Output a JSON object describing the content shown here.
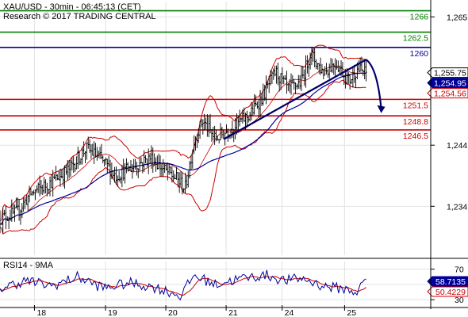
{
  "header": {
    "line1": "XAU/USD - 30min - 06:45:13 (CET)",
    "line2": "Research © 2017 TRADING CENTRAL"
  },
  "chart_data": {
    "type": "candlestick",
    "symbol": "XAU/USD",
    "interval": "30min",
    "grid": true,
    "price_axis": {
      "ylim": [
        1226,
        1267.5
      ],
      "ticks": [
        1265,
        1244,
        1234
      ]
    },
    "date_ticks": [
      {
        "label": "18",
        "t": 0.08
      },
      {
        "label": "19",
        "t": 0.245
      },
      {
        "label": "20",
        "t": 0.385
      },
      {
        "label": "21",
        "t": 0.525
      },
      {
        "label": "24",
        "t": 0.655
      },
      {
        "label": "25",
        "t": 0.8
      }
    ],
    "levels": [
      {
        "value": 1266,
        "label": "1266",
        "color": "#008000",
        "type": "resistance"
      },
      {
        "value": 1262.5,
        "label": "1262.5",
        "color": "#008000",
        "type": "resistance"
      },
      {
        "value": 1260,
        "label": "1260",
        "color": "#000099",
        "type": "pivot"
      },
      {
        "value": 1251.5,
        "label": "1251.5",
        "color": "#cc0000",
        "type": "support"
      },
      {
        "value": 1248.8,
        "label": "1248.8",
        "color": "#cc0000",
        "type": "support"
      },
      {
        "value": 1246.5,
        "label": "1246.5",
        "color": "#cc0000",
        "type": "support"
      }
    ],
    "price_tags": [
      {
        "value": 1255.75,
        "label": "1,255.75",
        "bg": "#ffffff",
        "fg": "#000000",
        "border": "#000000"
      },
      {
        "value": 1254.95,
        "label": "1,254.95",
        "bg": "#000099",
        "fg": "#ffffff",
        "border": "#000099"
      },
      {
        "value": 1254.56,
        "label": "1,254.56",
        "bg": "#ffffff",
        "fg": "#cc0000",
        "border": "#cc0000"
      }
    ],
    "key_points": [
      {
        "t": 0.0,
        "v": 1232
      },
      {
        "t": 0.04,
        "v": 1233
      },
      {
        "t": 0.07,
        "v": 1236
      },
      {
        "t": 0.12,
        "v": 1238
      },
      {
        "t": 0.16,
        "v": 1240
      },
      {
        "t": 0.2,
        "v": 1243.5
      },
      {
        "t": 0.23,
        "v": 1242
      },
      {
        "t": 0.27,
        "v": 1239
      },
      {
        "t": 0.31,
        "v": 1240.5
      },
      {
        "t": 0.35,
        "v": 1242
      },
      {
        "t": 0.38,
        "v": 1240
      },
      {
        "t": 0.41,
        "v": 1238.5
      },
      {
        "t": 0.43,
        "v": 1237
      },
      {
        "t": 0.45,
        "v": 1244.5
      },
      {
        "t": 0.47,
        "v": 1248
      },
      {
        "t": 0.5,
        "v": 1245
      },
      {
        "t": 0.54,
        "v": 1247
      },
      {
        "t": 0.58,
        "v": 1249
      },
      {
        "t": 0.61,
        "v": 1252
      },
      {
        "t": 0.64,
        "v": 1256
      },
      {
        "t": 0.67,
        "v": 1253
      },
      {
        "t": 0.7,
        "v": 1254.5
      },
      {
        "t": 0.72,
        "v": 1259
      },
      {
        "t": 0.75,
        "v": 1256
      },
      {
        "t": 0.78,
        "v": 1257.5
      },
      {
        "t": 0.81,
        "v": 1254.5
      },
      {
        "t": 0.83,
        "v": 1256.5
      },
      {
        "t": 0.85,
        "v": 1255.75
      }
    ],
    "trendline": {
      "from": {
        "t": 0.52,
        "v": 1245
      },
      "to": {
        "t": 0.85,
        "v": 1258
      },
      "color": "#000066"
    },
    "forecast_arrow": {
      "from": {
        "t": 0.85,
        "v": 1258
      },
      "to": {
        "t": 0.885,
        "v": 1249.5
      },
      "color": "#000066"
    },
    "rsi": {
      "title": "RSI14 - 9MA",
      "ylim": [
        25,
        80
      ],
      "ticks": [
        70,
        50,
        30
      ],
      "value_tag": "58.7135",
      "ma_tag": "50.4229",
      "value_color": "#000099",
      "ma_color": "#cc0000",
      "key_points": [
        {
          "t": 0.0,
          "v": 45
        },
        {
          "t": 0.06,
          "v": 55
        },
        {
          "t": 0.12,
          "v": 48
        },
        {
          "t": 0.18,
          "v": 60
        },
        {
          "t": 0.24,
          "v": 45
        },
        {
          "t": 0.3,
          "v": 52
        },
        {
          "t": 0.36,
          "v": 46
        },
        {
          "t": 0.42,
          "v": 35
        },
        {
          "t": 0.45,
          "v": 62
        },
        {
          "t": 0.5,
          "v": 50
        },
        {
          "t": 0.56,
          "v": 58
        },
        {
          "t": 0.62,
          "v": 62
        },
        {
          "t": 0.66,
          "v": 55
        },
        {
          "t": 0.7,
          "v": 58
        },
        {
          "t": 0.75,
          "v": 48
        },
        {
          "t": 0.8,
          "v": 44
        },
        {
          "t": 0.83,
          "v": 40
        },
        {
          "t": 0.85,
          "v": 58.7
        }
      ]
    }
  }
}
